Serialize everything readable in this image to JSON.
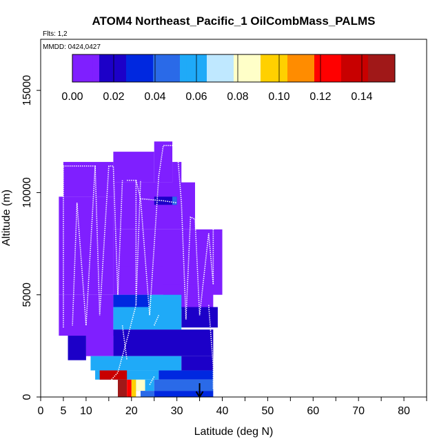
{
  "chart_data": {
    "type": "heatmap",
    "title": "ATOM4 Northeast_Pacific_1 OilCombMass_PALMS",
    "flights_note": "Flts: 1,2",
    "date_note": "MMDD: 0424,0427",
    "xlabel": "Latitude (deg N)",
    "ylabel": "Altitude (m)",
    "xlim": [
      0,
      85
    ],
    "ylim": [
      0,
      17500
    ],
    "x_ticks": [
      0,
      5,
      10,
      20,
      30,
      40,
      50,
      60,
      70,
      80
    ],
    "x_minor_ticks": [
      15,
      25,
      35,
      45,
      55,
      65,
      75,
      85
    ],
    "y_ticks": [
      0,
      5000,
      10000,
      15000
    ],
    "marker_latitude": 35,
    "colorbar": {
      "range": [
        0,
        0.156
      ],
      "ticks": [
        0.0,
        0.02,
        0.04,
        0.06,
        0.08,
        0.1,
        0.12,
        0.14
      ],
      "tick_labels": [
        "0.00",
        "0.02",
        "0.04",
        "0.06",
        "0.08",
        "0.10",
        "0.12",
        "0.14"
      ],
      "colors": [
        "#7f1fff",
        "#1c00c8",
        "#0028e0",
        "#2a6ae8",
        "#1faaf8",
        "#bfe8ff",
        "#ffffc8",
        "#ffd000",
        "#ff8c00",
        "#ff0000",
        "#c80000",
        "#a01818"
      ]
    },
    "cells": [
      {
        "lat0": 16,
        "lat1": 25,
        "alt0": 10500,
        "alt1": 12000,
        "value": 0.002
      },
      {
        "lat0": 25,
        "lat1": 29,
        "alt0": 10500,
        "alt1": 12500,
        "value": 0.002
      },
      {
        "lat0": 29,
        "lat1": 31,
        "alt0": 10000,
        "alt1": 11500,
        "value": 0.002
      },
      {
        "lat0": 5,
        "lat1": 16,
        "alt0": 9800,
        "alt1": 11500,
        "value": 0.003
      },
      {
        "lat0": 16,
        "lat1": 34,
        "alt0": 8200,
        "alt1": 10500,
        "value": 0.003
      },
      {
        "lat0": 21,
        "lat1": 25,
        "alt0": 9400,
        "alt1": 9800,
        "value": 0.012
      },
      {
        "lat0": 25,
        "lat1": 30,
        "alt0": 9400,
        "alt1": 9800,
        "value": 0.018
      },
      {
        "lat0": 29,
        "lat1": 30,
        "alt0": 9400,
        "alt1": 9800,
        "value": 0.05
      },
      {
        "lat0": 4,
        "lat1": 16,
        "alt0": 5000,
        "alt1": 9800,
        "value": 0.004
      },
      {
        "lat0": 16,
        "lat1": 40,
        "alt0": 5000,
        "alt1": 8200,
        "value": 0.005
      },
      {
        "lat0": 17,
        "lat1": 27,
        "alt0": 5000,
        "alt1": 6400,
        "value": 0.008
      },
      {
        "lat0": 27,
        "lat1": 38,
        "alt0": 4300,
        "alt1": 5500,
        "value": 0.004
      },
      {
        "lat0": 4,
        "lat1": 16,
        "alt0": 3000,
        "alt1": 5000,
        "value": 0.005
      },
      {
        "lat0": 16,
        "lat1": 24,
        "alt0": 4400,
        "alt1": 5000,
        "value": 0.03
      },
      {
        "lat0": 24,
        "lat1": 31,
        "alt0": 4400,
        "alt1": 5000,
        "value": 0.052
      },
      {
        "lat0": 31,
        "lat1": 39,
        "alt0": 3400,
        "alt1": 4400,
        "value": 0.015
      },
      {
        "lat0": 16,
        "lat1": 31,
        "alt0": 3300,
        "alt1": 4400,
        "value": 0.06
      },
      {
        "lat0": 16,
        "lat1": 38,
        "alt0": 2000,
        "alt1": 3300,
        "value": 0.025
      },
      {
        "lat0": 10,
        "lat1": 16,
        "alt0": 2000,
        "alt1": 3300,
        "value": 0.008
      },
      {
        "lat0": 6,
        "lat1": 10,
        "alt0": 1800,
        "alt1": 3000,
        "value": 0.025
      },
      {
        "lat0": 11,
        "lat1": 31,
        "alt0": 1300,
        "alt1": 2000,
        "value": 0.058
      },
      {
        "lat0": 31,
        "lat1": 38,
        "alt0": 1300,
        "alt1": 2000,
        "value": 0.02
      },
      {
        "lat0": 12,
        "lat1": 26,
        "alt0": 850,
        "alt1": 1300,
        "value": 0.055
      },
      {
        "lat0": 26,
        "lat1": 38,
        "alt0": 850,
        "alt1": 1300,
        "value": 0.03
      },
      {
        "lat0": 13,
        "lat1": 17,
        "alt0": 850,
        "alt1": 1300,
        "value": 0.13
      },
      {
        "lat0": 17,
        "lat1": 19,
        "alt0": 850,
        "alt1": 1300,
        "value": 0.14
      },
      {
        "lat0": 20,
        "lat1": 25,
        "alt0": 300,
        "alt1": 850,
        "value": 0.06
      },
      {
        "lat0": 25,
        "lat1": 38,
        "alt0": 300,
        "alt1": 850,
        "value": 0.04
      },
      {
        "lat0": 17,
        "lat1": 19,
        "alt0": 0,
        "alt1": 850,
        "value": 0.15
      },
      {
        "lat0": 19,
        "lat1": 20,
        "alt0": 0,
        "alt1": 850,
        "value": 0.12
      },
      {
        "lat0": 20,
        "lat1": 21,
        "alt0": 0,
        "alt1": 850,
        "value": 0.1
      },
      {
        "lat0": 21,
        "lat1": 23,
        "alt0": 300,
        "alt1": 850,
        "value": 0.08
      },
      {
        "lat0": 22,
        "lat1": 25,
        "alt0": 0,
        "alt1": 300,
        "value": 0.045
      },
      {
        "lat0": 25,
        "lat1": 38,
        "alt0": 0,
        "alt1": 300,
        "value": 0.03
      }
    ],
    "track_segments": [
      [
        [
          5,
          11300
        ],
        [
          10,
          11300
        ],
        [
          12,
          11300
        ],
        [
          10,
          3500
        ],
        [
          8,
          9500
        ]
      ],
      [
        [
          5,
          3400
        ],
        [
          5,
          11300
        ]
      ],
      [
        [
          8,
          9500
        ],
        [
          7,
          3500
        ]
      ],
      [
        [
          12,
          11300
        ],
        [
          13,
          4000
        ],
        [
          15,
          11300
        ],
        [
          16,
          11300
        ],
        [
          17,
          5000
        ]
      ],
      [
        [
          17,
          5000
        ],
        [
          18,
          10600
        ]
      ],
      [
        [
          19,
          10600
        ],
        [
          21,
          10600
        ],
        [
          21,
          4500
        ],
        [
          22,
          10600
        ]
      ],
      [
        [
          21,
          10600
        ],
        [
          22,
          9700
        ],
        [
          27,
          9600
        ],
        [
          30,
          9500
        ]
      ],
      [
        [
          22,
          9700
        ],
        [
          24,
          4000
        ],
        [
          26,
          10800
        ],
        [
          27,
          12300
        ],
        [
          30,
          12300
        ]
      ],
      [
        [
          30,
          12300
        ],
        [
          31,
          9500
        ],
        [
          32,
          3800
        ]
      ],
      [
        [
          32,
          3800
        ],
        [
          33,
          8800
        ],
        [
          34,
          8700
        ],
        [
          35,
          4000
        ],
        [
          37,
          8000
        ]
      ],
      [
        [
          37,
          8000
        ],
        [
          38,
          5500
        ],
        [
          38,
          8400
        ]
      ],
      [
        [
          25,
          3500
        ],
        [
          26,
          4000
        ]
      ],
      [
        [
          15,
          700
        ],
        [
          17,
          1200
        ],
        [
          19,
          2800
        ],
        [
          21,
          4500
        ]
      ],
      [
        [
          37,
          4500
        ],
        [
          38,
          1500
        ],
        [
          38,
          400
        ]
      ],
      [
        [
          18,
          3500
        ],
        [
          19,
          1800
        ]
      ],
      [
        [
          24,
          600
        ],
        [
          25,
          1000
        ]
      ]
    ]
  }
}
